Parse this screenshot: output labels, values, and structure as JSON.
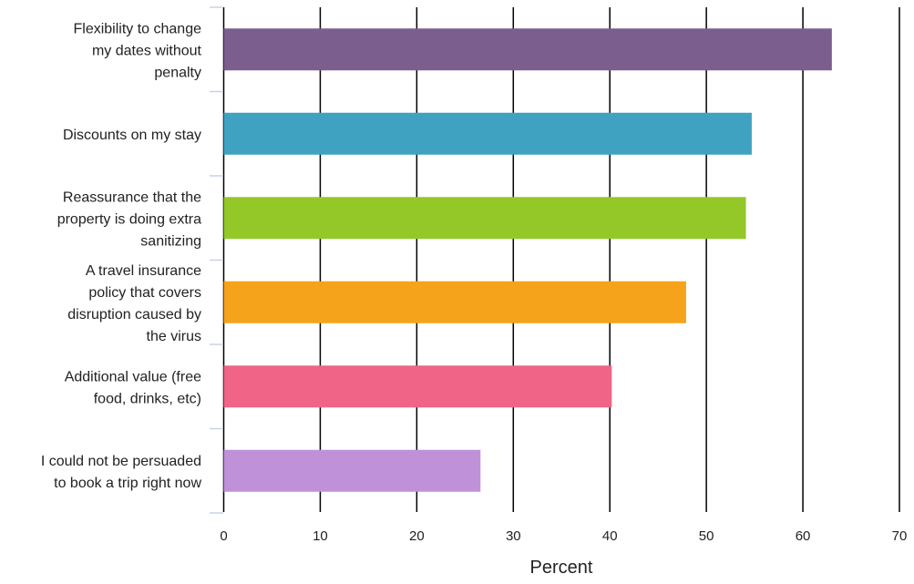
{
  "chart_data": {
    "type": "bar",
    "orientation": "horizontal",
    "categories": [
      [
        "Flexibility to change",
        "my dates without",
        "penalty"
      ],
      [
        "Discounts on my stay"
      ],
      [
        "Reassurance that the",
        "property is doing extra",
        "sanitizing"
      ],
      [
        "A travel insurance",
        "policy that covers",
        "disruption caused by",
        "the virus"
      ],
      [
        "Additional value (free",
        "food, drinks, etc)"
      ],
      [
        "I could not be persuaded",
        "to book a trip right now"
      ]
    ],
    "values": [
      63,
      54.7,
      54.1,
      47.9,
      40.2,
      26.6
    ],
    "colors": [
      "#7b5e8e",
      "#3fa2c1",
      "#94c829",
      "#f5a31b",
      "#ef6487",
      "#be91d9"
    ],
    "xlabel": "Percent",
    "ylabel": "",
    "title": "",
    "xlim": [
      0,
      70
    ],
    "xticks": [
      "0",
      "10",
      "20",
      "30",
      "40",
      "50",
      "60",
      "70"
    ],
    "grid": "vertical lines",
    "legend": "none"
  }
}
